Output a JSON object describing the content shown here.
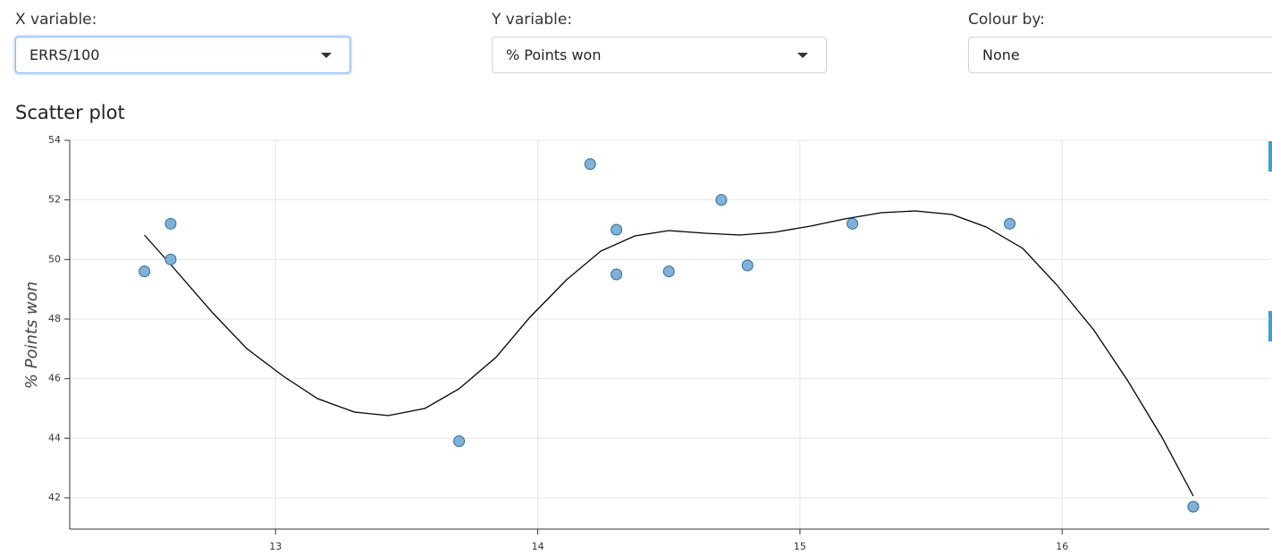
{
  "controls": [
    {
      "label": "X variable:",
      "value": "ERRS/100"
    },
    {
      "label": "Y variable:",
      "value": "% Points won"
    },
    {
      "label": "Colour by:",
      "value": "None"
    }
  ],
  "section_title": "Scatter plot",
  "chart_data": {
    "type": "scatter",
    "ylabel": "% Points won",
    "xlim": [
      12.215,
      16.79
    ],
    "ylim": [
      40.95,
      54
    ],
    "xticks": [
      13,
      14,
      15,
      16
    ],
    "yticks": [
      42,
      44,
      46,
      48,
      50,
      52,
      54
    ],
    "grid": true,
    "series": [
      {
        "type": "scatter",
        "color": "#7fb2d9",
        "x": [
          12.5,
          12.6,
          12.6,
          13.7,
          14.2,
          14.3,
          14.3,
          14.5,
          14.7,
          14.8,
          15.2,
          15.8,
          16.5
        ],
        "y": [
          49.6,
          51.2,
          50.0,
          43.9,
          53.2,
          51.0,
          49.5,
          49.6,
          52.0,
          49.8,
          51.2,
          51.2,
          41.7
        ]
      },
      {
        "type": "line",
        "color": "#000000",
        "x": [
          12.5,
          12.6,
          12.76,
          12.89,
          13.03,
          13.16,
          13.3,
          13.43,
          13.57,
          13.7,
          13.84,
          13.97,
          14.11,
          14.24,
          14.37,
          14.5,
          14.64,
          14.77,
          14.9,
          15.04,
          15.17,
          15.31,
          15.44,
          15.58,
          15.71,
          15.85,
          15.98,
          16.12,
          16.25,
          16.38,
          16.5
        ],
        "y": [
          50.82,
          49.83,
          48.21,
          47.01,
          46.08,
          45.33,
          44.88,
          44.76,
          45.0,
          45.66,
          46.71,
          48.06,
          49.32,
          50.28,
          50.79,
          50.97,
          50.88,
          50.82,
          50.91,
          51.12,
          51.36,
          51.57,
          51.63,
          51.51,
          51.09,
          50.37,
          49.14,
          47.64,
          45.93,
          44.04,
          42.06
        ]
      }
    ]
  }
}
